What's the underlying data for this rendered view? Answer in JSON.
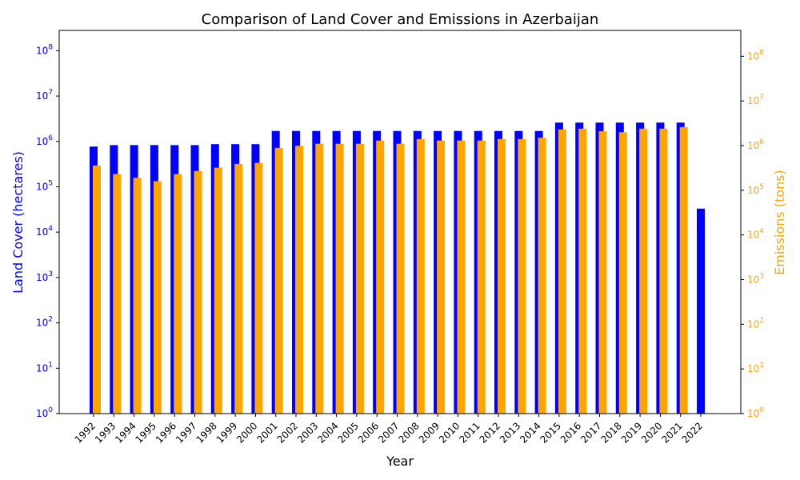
{
  "chart_data": {
    "type": "bar",
    "title": "Comparison of Land Cover and Emissions in Azerbaijan",
    "xlabel": "Year",
    "ylabel_left": "Land Cover (hectares)",
    "ylabel_right": "Emissions (tons)",
    "yscale": "log",
    "left_ylim": [
      1,
      280000000
    ],
    "right_ylim": [
      1,
      380000000
    ],
    "left_tick_exponents": [
      0,
      1,
      2,
      3,
      4,
      5,
      6,
      7,
      8
    ],
    "right_tick_exponents": [
      0,
      1,
      2,
      3,
      4,
      5,
      6,
      7,
      8
    ],
    "grid": false,
    "legend": "none",
    "colors": {
      "land_cover": "#0000ff",
      "emissions": "#ffa500",
      "right_axis": "#ffa500",
      "left_axis": "#0000ff"
    },
    "categories": [
      "1992",
      "1993",
      "1994",
      "1995",
      "1996",
      "1997",
      "1998",
      "1999",
      "2000",
      "2001",
      "2002",
      "2003",
      "2004",
      "2005",
      "2006",
      "2007",
      "2008",
      "2009",
      "2010",
      "2011",
      "2012",
      "2013",
      "2014",
      "2015",
      "2016",
      "2017",
      "2018",
      "2019",
      "2020",
      "2021",
      "2022"
    ],
    "series": [
      {
        "key": "land_cover",
        "axis": "left",
        "values": [
          770000,
          830000,
          830000,
          830000,
          830000,
          830000,
          870000,
          870000,
          870000,
          1700000,
          1700000,
          1700000,
          1700000,
          1700000,
          1700000,
          1700000,
          1700000,
          1700000,
          1700000,
          1700000,
          1700000,
          1700000,
          1700000,
          2600000,
          2600000,
          2600000,
          2600000,
          2600000,
          2600000,
          2600000,
          33000
        ]
      },
      {
        "key": "emissions",
        "axis": "right",
        "values": [
          360000,
          230000,
          190000,
          160000,
          230000,
          270000,
          320000,
          390000,
          410000,
          890000,
          990000,
          1100000,
          1100000,
          1100000,
          1300000,
          1100000,
          1400000,
          1300000,
          1300000,
          1300000,
          1400000,
          1400000,
          1500000,
          2300000,
          2400000,
          2100000,
          2000000,
          2400000,
          2400000,
          2600000,
          null
        ]
      }
    ]
  }
}
